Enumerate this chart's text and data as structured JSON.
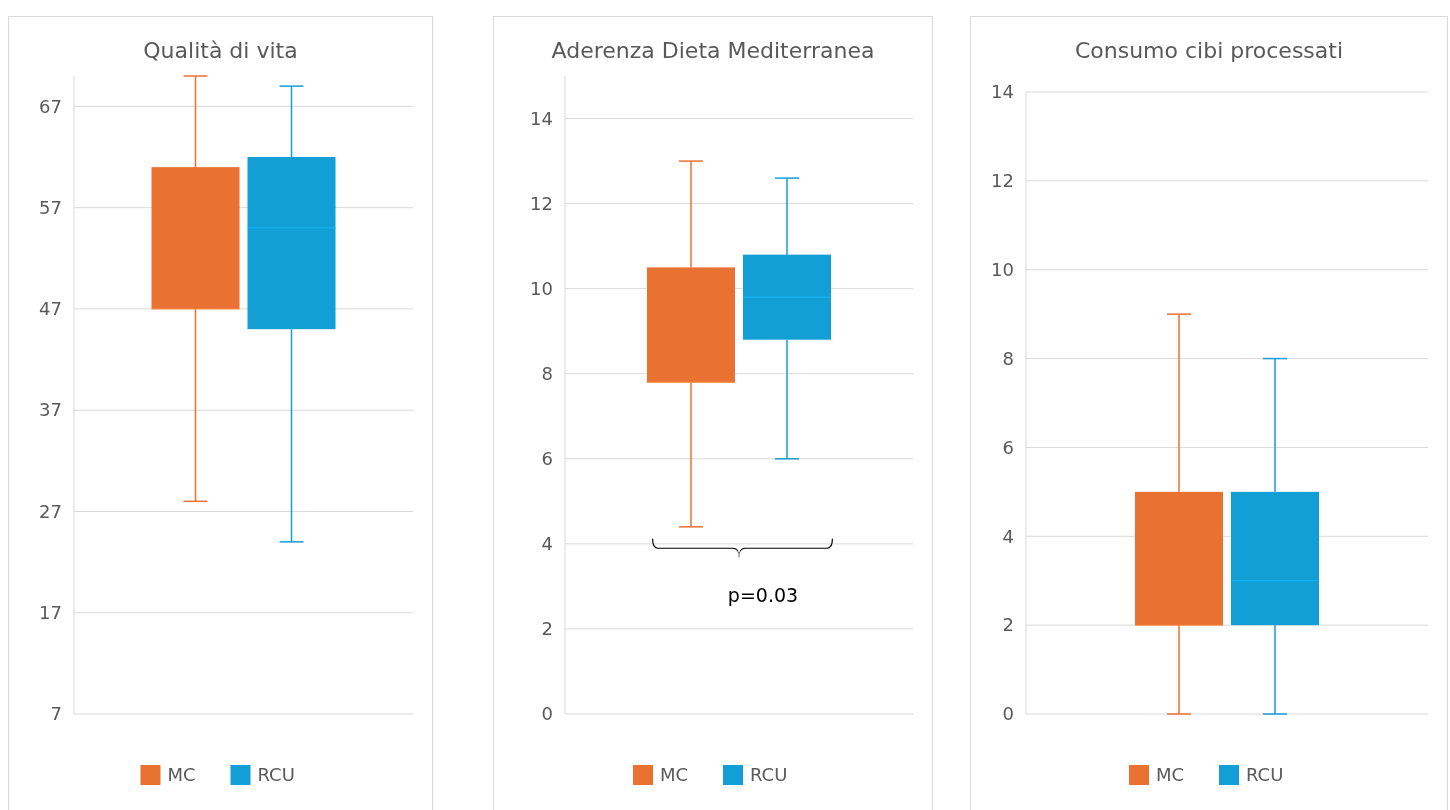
{
  "chart_data": [
    {
      "type": "box",
      "title": "Qualità di vita",
      "categories": [
        null
      ],
      "ylim": [
        7,
        70
      ],
      "yticks": [
        7,
        17,
        27,
        37,
        47,
        57,
        67
      ],
      "grid": "y",
      "legend": "bottom",
      "series": [
        {
          "name": "MC",
          "color": "#e97132",
          "boxes": [
            {
              "low": 28,
              "q1": 47,
              "median": 47,
              "q3": 61,
              "high": 70
            }
          ]
        },
        {
          "name": "RCU",
          "color": "#129fd6",
          "boxes": [
            {
              "low": 24,
              "q1": 45,
              "median": 55,
              "q3": 62,
              "high": 69
            }
          ]
        }
      ]
    },
    {
      "type": "box",
      "title": "Aderenza Dieta Mediterranea",
      "categories": [
        null
      ],
      "ylim": [
        0,
        15
      ],
      "yticks": [
        0,
        2,
        4,
        6,
        8,
        10,
        12,
        14
      ],
      "grid": "y",
      "legend": "bottom",
      "annotations": [
        "p=0.03"
      ],
      "series": [
        {
          "name": "MC",
          "color": "#e97132",
          "boxes": [
            {
              "low": 4.4,
              "q1": 7.8,
              "median": 7.8,
              "q3": 10.5,
              "high": 13
            }
          ]
        },
        {
          "name": "RCU",
          "color": "#129fd6",
          "boxes": [
            {
              "low": 6,
              "q1": 8.8,
              "median": 9.8,
              "q3": 10.8,
              "high": 12.6
            }
          ]
        }
      ]
    },
    {
      "type": "box",
      "title": "Consumo cibi processati",
      "categories": [
        null
      ],
      "ylim": [
        0,
        14
      ],
      "yticks": [
        0,
        2,
        4,
        6,
        8,
        10,
        12,
        14
      ],
      "grid": "y",
      "legend": "bottom",
      "series": [
        {
          "name": "MC",
          "color": "#e97132",
          "boxes": [
            {
              "low": 0,
              "q1": 2,
              "median": 2,
              "q3": 5,
              "high": 9
            }
          ]
        },
        {
          "name": "RCU",
          "color": "#129fd6",
          "boxes": [
            {
              "low": 0,
              "q1": 2,
              "median": 3,
              "q3": 5,
              "high": 8
            }
          ]
        }
      ]
    }
  ]
}
